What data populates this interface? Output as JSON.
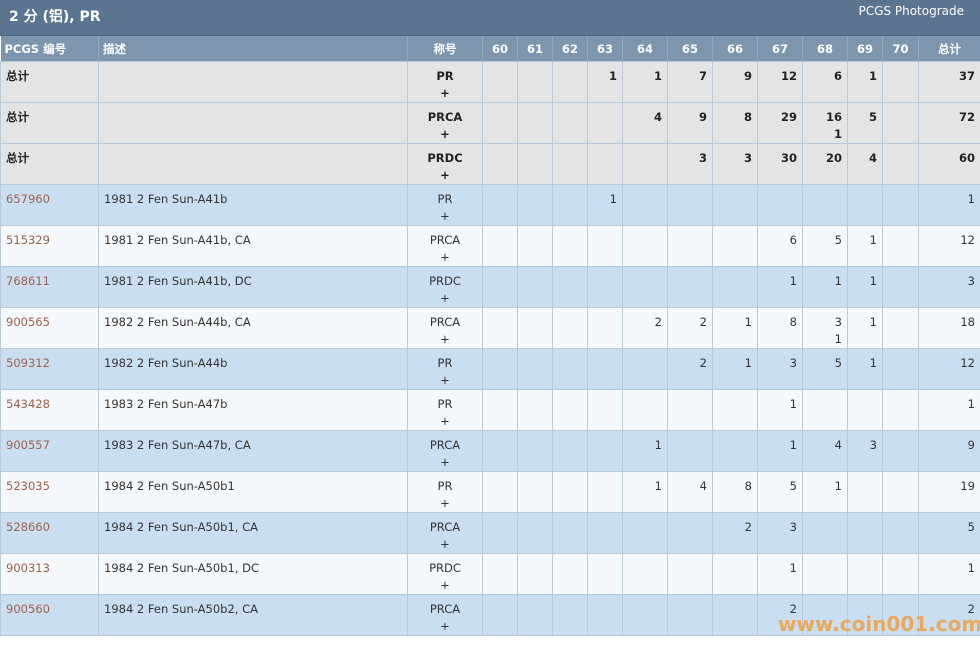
{
  "header": {
    "title": "2 分 (铝), PR",
    "brand": "PCGS Photograde"
  },
  "table": {
    "columns": [
      "PCGS 编号",
      "描述",
      "称号",
      "60",
      "61",
      "62",
      "63",
      "64",
      "65",
      "66",
      "67",
      "68",
      "69",
      "70",
      "总计"
    ],
    "total_rows": [
      [
        "总计",
        null,
        "PR\n+",
        null,
        null,
        null,
        1,
        1,
        7,
        9,
        12,
        6,
        1,
        null,
        37
      ],
      [
        "总计",
        null,
        "PRCA\n+",
        null,
        null,
        null,
        null,
        4,
        9,
        8,
        29,
        "16\n1",
        5,
        null,
        72
      ],
      [
        "总计",
        null,
        "PRDC\n+",
        null,
        null,
        null,
        null,
        null,
        3,
        3,
        30,
        20,
        4,
        null,
        60
      ]
    ],
    "rows": [
      [
        "657960",
        "1981 2 Fen Sun-A41b",
        "PR\n+",
        null,
        null,
        null,
        1,
        null,
        null,
        null,
        null,
        null,
        null,
        null,
        1
      ],
      [
        "515329",
        "1981 2 Fen Sun-A41b, CA",
        "PRCA\n+",
        null,
        null,
        null,
        null,
        null,
        null,
        null,
        6,
        5,
        1,
        null,
        12
      ],
      [
        "768611",
        "1981 2 Fen Sun-A41b, DC",
        "PRDC\n+",
        null,
        null,
        null,
        null,
        null,
        null,
        null,
        1,
        1,
        1,
        null,
        3
      ],
      [
        "900565",
        "1982 2 Fen Sun-A44b, CA",
        "PRCA\n+",
        null,
        null,
        null,
        null,
        2,
        2,
        1,
        8,
        "3\n1",
        1,
        null,
        18
      ],
      [
        "509312",
        "1982 2 Fen Sun-A44b",
        "PR\n+",
        null,
        null,
        null,
        null,
        null,
        2,
        1,
        3,
        5,
        1,
        null,
        12
      ],
      [
        "543428",
        "1983 2 Fen Sun-A47b",
        "PR\n+",
        null,
        null,
        null,
        null,
        null,
        null,
        null,
        1,
        null,
        null,
        null,
        1
      ],
      [
        "900557",
        "1983 2 Fen Sun-A47b, CA",
        "PRCA\n+",
        null,
        null,
        null,
        null,
        1,
        null,
        null,
        1,
        4,
        3,
        null,
        9
      ],
      [
        "523035",
        "1984 2 Fen Sun-A50b1",
        "PR\n+",
        null,
        null,
        null,
        null,
        1,
        4,
        8,
        5,
        1,
        null,
        null,
        19
      ],
      [
        "528660",
        "1984 2 Fen Sun-A50b1, CA",
        "PRCA\n+",
        null,
        null,
        null,
        null,
        null,
        null,
        2,
        3,
        null,
        null,
        null,
        5
      ],
      [
        "900313",
        "1984 2 Fen Sun-A50b1, DC",
        "PRDC\n+",
        null,
        null,
        null,
        null,
        null,
        null,
        null,
        1,
        null,
        null,
        null,
        1
      ],
      [
        "900560",
        "1984 2 Fen Sun-A50b2, CA",
        "PRCA\n+",
        null,
        null,
        null,
        null,
        null,
        null,
        null,
        2,
        null,
        null,
        null,
        2
      ]
    ]
  },
  "watermark": "www.coin001.com"
}
